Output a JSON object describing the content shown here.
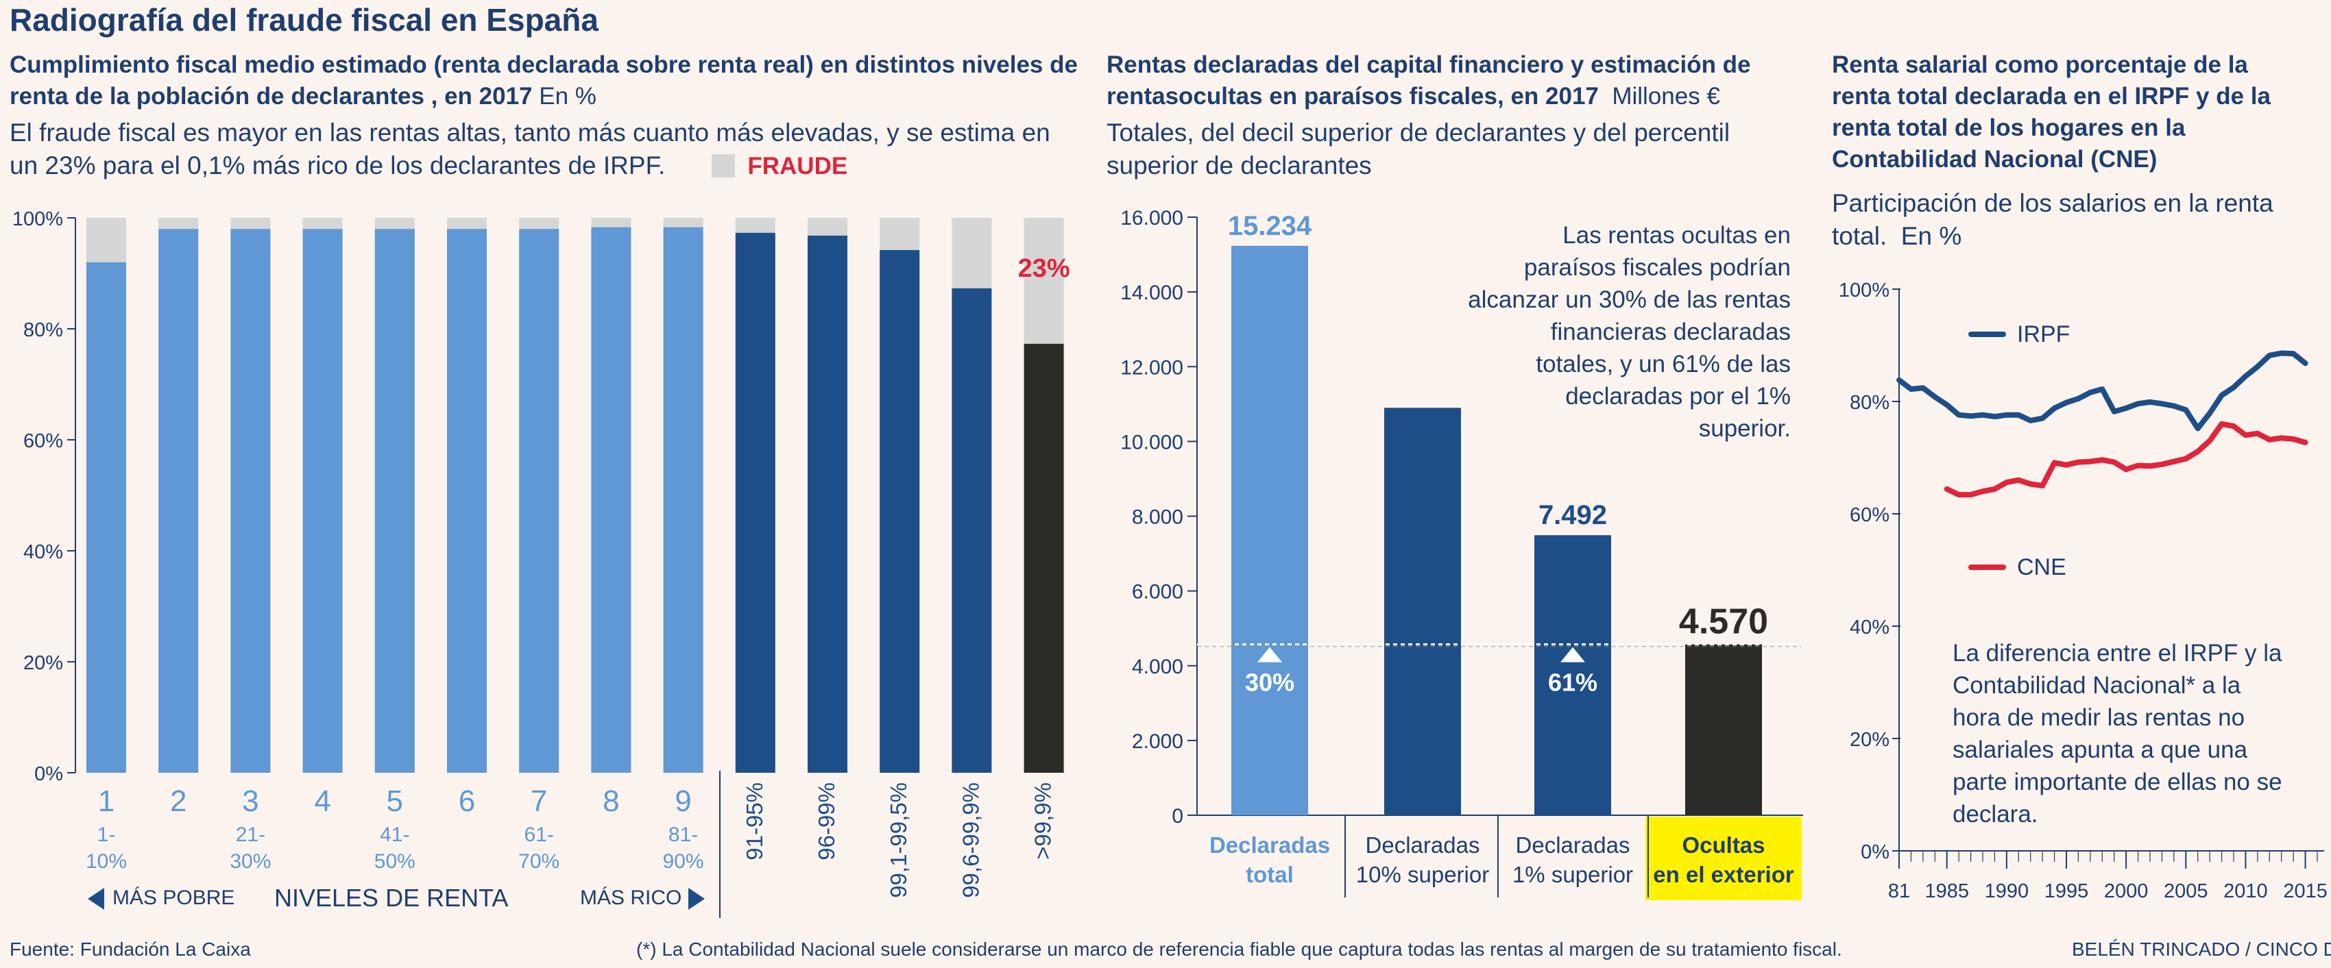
{
  "title": "Radiografía del fraude fiscal en España",
  "panel1": {
    "subtitle": "Cumplimiento fiscal medio estimado (renta declarada sobre renta real) en distintos niveles de renta de la población de declarantes , en 2017",
    "unit": "En %",
    "description": "El fraude fiscal es mayor en las rentas altas, tanto más cuanto más elevadas, y se estima en un 23% para el 0,1% más rico de los declarantes de IRPF.",
    "legend_fraude": "FRAUDE",
    "annotation": "23%",
    "nav_left": "MÁS POBRE",
    "nav_center": "NIVELES DE RENTA",
    "nav_right": "MÁS RICO",
    "colors": {
      "deciles": "#5f98d4",
      "top": "#1e4e87",
      "top_0_1": "#2b2b27",
      "fraude": "#d6d6d6",
      "annotation": "#e0243c"
    }
  },
  "panel2": {
    "subtitle": "Rentas declaradas del capital financiero y estimación de rentasocultas en paraísos fiscales, en 2017",
    "unit": "Millones €",
    "description": "Totales, del decil superior de declarantes y del percentil superior de declarantes",
    "annotation": "Las rentas ocultas en paraísos fiscales podrían alcanzar un 30% de las rentas financieras declaradas totales, y un 61% de las declaradas por el 1% superior.",
    "colors": {
      "total": "#5f98d4",
      "dark": "#1e4e87",
      "hidden": "#2b2b27",
      "highlight": "#fff200"
    }
  },
  "panel3": {
    "subtitle": "Renta salarial como porcentaje de la renta total declarada en el IRPF y de la renta total de los hogares en la Contabilidad Nacional (CNE)",
    "description": "Participación de los salarios en la renta total.",
    "unit": "En %",
    "annotation": "La diferencia entre el IRPF y la Contabilidad Nacional* a la hora de medir las rentas no salariales apunta a que una parte importante de ellas no se declara.",
    "colors": {
      "IRPF": "#1e4e87",
      "CNE": "#e0243c"
    }
  },
  "footer": {
    "source": "Fuente: Fundación La Caixa",
    "note": "(*) La Contabilidad Nacional suele considerarse un marco de referencia fiable que captura todas las rentas al margen de su tratamiento fiscal.",
    "credit": "BELÉN TRINCADO / CINCO DÍAS"
  },
  "chart_data": [
    {
      "type": "bar",
      "stacked": true,
      "categories": [
        "1",
        "2",
        "3",
        "4",
        "5",
        "6",
        "7",
        "8",
        "9",
        "91-95%",
        "96-99%",
        "99,1-99,5%",
        "99,6-99,9%",
        ">99,9%"
      ],
      "category_sublabels": [
        "1-\n10%",
        "",
        "21-\n30%",
        "",
        "41-\n50%",
        "",
        "61-\n70%",
        "",
        "81-\n90%",
        "",
        "",
        "",
        "",
        ""
      ],
      "series": [
        {
          "name": "",
          "values": [
            92,
            98,
            98,
            98,
            98,
            98,
            98,
            98.3,
            98.3,
            97.3,
            96.8,
            94.2,
            87.3,
            77.3
          ]
        },
        {
          "name": "FRAUDE",
          "values": [
            8,
            2,
            2,
            2,
            2,
            2,
            2,
            1.7,
            1.7,
            2.7,
            3.2,
            5.8,
            12.7,
            22.7
          ]
        }
      ],
      "ylim": [
        0,
        100
      ],
      "yticks": [
        "0%",
        "20%",
        "40%",
        "60%",
        "80%",
        "100%"
      ],
      "grid": false
    },
    {
      "type": "bar",
      "categories": [
        "Declaradas total",
        "Declaradas 10% superior",
        "Declaradas 1% superior",
        "Ocultas en el exterior"
      ],
      "values": [
        15234,
        10900,
        7492,
        4570
      ],
      "data_labels": [
        "15.234",
        "",
        "7.492",
        "4.570"
      ],
      "pct_markers": [
        {
          "category": 0,
          "label": "30%"
        },
        {
          "category": 2,
          "label": "61%"
        }
      ],
      "reference_line": 4570,
      "ylim": [
        0,
        16000
      ],
      "yticks": [
        "0",
        "2.000",
        "4.000",
        "6.000",
        "8.000",
        "10.000",
        "12.000",
        "14.000",
        "16.000"
      ],
      "grid": false
    },
    {
      "type": "line",
      "x": [
        1981,
        1982,
        1983,
        1984,
        1985,
        1986,
        1987,
        1988,
        1989,
        1990,
        1991,
        1992,
        1993,
        1994,
        1995,
        1996,
        1997,
        1998,
        1999,
        2000,
        2001,
        2002,
        2003,
        2004,
        2005,
        2006,
        2007,
        2008,
        2009,
        2010,
        2011,
        2012,
        2013,
        2014,
        2015
      ],
      "series": [
        {
          "name": "IRPF",
          "values": [
            83.8,
            82.2,
            82.4,
            80.8,
            79.4,
            77.6,
            77.4,
            77.6,
            77.3,
            77.6,
            77.6,
            76.6,
            77.0,
            78.8,
            79.8,
            80.5,
            81.6,
            82.2,
            78.2,
            78.8,
            79.6,
            79.9,
            79.6,
            79.2,
            78.5,
            75.2,
            77.9,
            81.1,
            82.5,
            84.5,
            86.2,
            88.2,
            88.6,
            88.5,
            86.8
          ]
        },
        {
          "name": "CNE",
          "values": [
            null,
            null,
            null,
            null,
            64.4,
            63.4,
            63.4,
            64.0,
            64.4,
            65.6,
            66.0,
            65.3,
            65.0,
            69.1,
            68.7,
            69.2,
            69.3,
            69.6,
            69.2,
            67.9,
            68.6,
            68.5,
            68.8,
            69.3,
            69.8,
            71.1,
            73.0,
            76.0,
            75.6,
            74.0,
            74.3,
            73.2,
            73.5,
            73.3,
            72.7
          ]
        }
      ],
      "ylim": [
        0,
        100
      ],
      "yticks": [
        "0%",
        "20%",
        "40%",
        "60%",
        "80%",
        "100%"
      ],
      "xticks": [
        "81",
        "1985",
        "1990",
        "1995",
        "2000",
        "2005",
        "2010",
        "2015"
      ],
      "legend": "in-plot",
      "grid": false
    }
  ]
}
